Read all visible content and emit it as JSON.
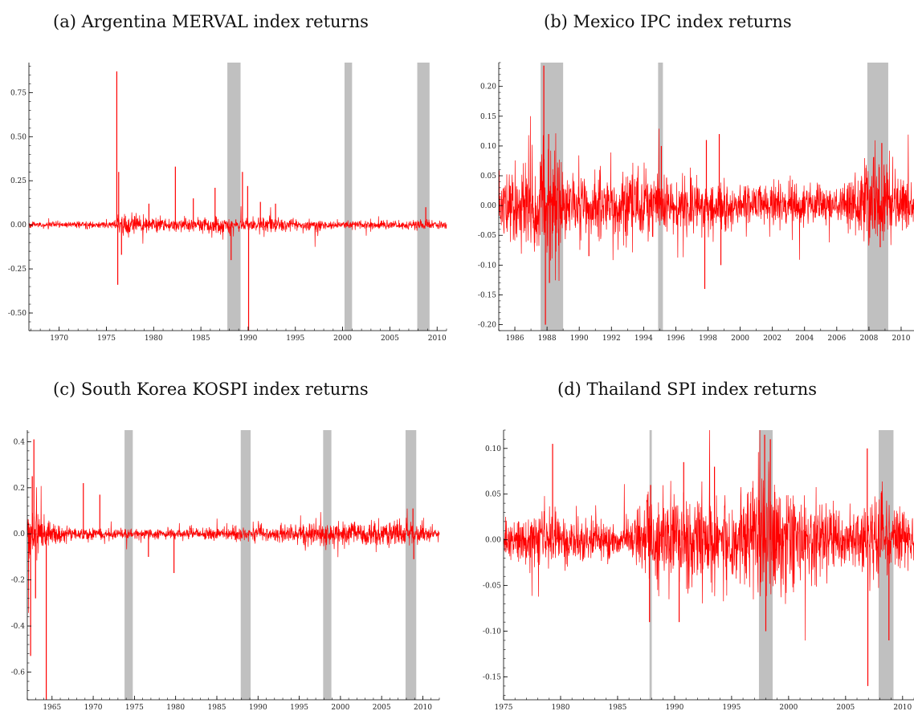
{
  "chart_data": [
    {
      "type": "line",
      "title": "(a) Argentina MERVAL index returns",
      "xlim": [
        1966.8,
        2011.0
      ],
      "ylim": [
        -0.6,
        0.92
      ],
      "xticks": [
        1970,
        1975,
        1980,
        1985,
        1990,
        1995,
        2000,
        2005,
        2010
      ],
      "yticks": [
        -0.5,
        -0.25,
        0.0,
        0.25,
        0.5,
        0.75
      ],
      "ytick_labels": [
        "-0.50",
        "-0.25",
        "0.00",
        "0.25",
        "0.50",
        "0.75"
      ],
      "zero_line": false,
      "shaded_periods": [
        [
          1987.8,
          1989.2
        ],
        [
          2000.2,
          2001.0
        ],
        [
          2007.9,
          2009.2
        ]
      ],
      "series": [
        {
          "values_note": "",
          "base_vol": [
            [
              1966.8,
              0.008
            ],
            [
              1975.5,
              0.01
            ],
            [
              1976.5,
              0.03
            ],
            [
              1980,
              0.018
            ],
            [
              1986,
              0.022
            ],
            [
              1992,
              0.022
            ],
            [
              1996,
              0.015
            ],
            [
              2000,
              0.012
            ],
            [
              2008,
              0.015
            ],
            [
              2011,
              0.012
            ]
          ],
          "spikes": [
            [
              1976.1,
              0.87
            ],
            [
              1976.2,
              -0.34
            ],
            [
              1976.3,
              0.3
            ],
            [
              1976.6,
              -0.17
            ],
            [
              1982.3,
              0.33
            ],
            [
              1989.4,
              0.3
            ],
            [
              1989.95,
              0.22
            ],
            [
              1990.05,
              -0.6
            ],
            [
              1979.5,
              0.12
            ],
            [
              1984.2,
              0.15
            ],
            [
              1986.5,
              0.21
            ],
            [
              1991.3,
              0.13
            ],
            [
              1992.9,
              0.12
            ],
            [
              2008.8,
              0.1
            ],
            [
              1988.2,
              -0.2
            ]
          ]
        }
      ]
    },
    {
      "type": "line",
      "title": "(b) Mexico IPC index returns",
      "xlim": [
        1985.0,
        2010.8
      ],
      "ylim": [
        -0.21,
        0.24
      ],
      "xticks": [
        1986,
        1988,
        1990,
        1992,
        1994,
        1996,
        1998,
        2000,
        2002,
        2004,
        2006,
        2008,
        2010
      ],
      "yticks": [
        -0.2,
        -0.15,
        -0.1,
        -0.05,
        0.0,
        0.05,
        0.1,
        0.15,
        0.2
      ],
      "ytick_labels": [
        "-0.20",
        "-0.15",
        "-0.10",
        "-0.05",
        "0.00",
        "0.05",
        "0.10",
        "0.15",
        "0.20"
      ],
      "zero_line": false,
      "shaded_periods": [
        [
          1987.6,
          1989.0
        ],
        [
          1994.9,
          1995.2
        ],
        [
          2007.9,
          2009.2
        ]
      ],
      "series": [
        {
          "values_note": "",
          "base_vol": [
            [
              1985,
              0.025
            ],
            [
              1987.5,
              0.04
            ],
            [
              1988.3,
              0.05
            ],
            [
              1989.5,
              0.025
            ],
            [
              1995,
              0.03
            ],
            [
              1996,
              0.02
            ],
            [
              2006,
              0.015
            ],
            [
              2008.8,
              0.04
            ],
            [
              2010.8,
              0.015
            ]
          ],
          "spikes": [
            [
              1987.8,
              0.235
            ],
            [
              1987.9,
              -0.2
            ],
            [
              1988.1,
              0.12
            ],
            [
              1988.15,
              -0.13
            ],
            [
              1995.1,
              0.1
            ],
            [
              1997.8,
              -0.14
            ],
            [
              1997.9,
              0.11
            ],
            [
              1998.7,
              0.12
            ],
            [
              1998.8,
              -0.1
            ],
            [
              2008.8,
              0.105
            ],
            [
              2008.7,
              -0.07
            ],
            [
              1990.6,
              -0.085
            ]
          ]
        }
      ]
    },
    {
      "type": "line",
      "title": "(c) South Korea KOSPI index returns",
      "xlim": [
        1962.0,
        2012.0
      ],
      "ylim": [
        -0.72,
        0.45
      ],
      "xticks": [
        1965,
        1970,
        1975,
        1980,
        1985,
        1990,
        1995,
        2000,
        2005,
        2010
      ],
      "yticks": [
        -0.6,
        -0.4,
        -0.2,
        0.0,
        0.2,
        0.4
      ],
      "ytick_labels": [
        "-0.6",
        "-0.4",
        "-0.2",
        "0.0",
        "0.2",
        "0.4"
      ],
      "zero_line": true,
      "shaded_periods": [
        [
          1973.8,
          1974.8
        ],
        [
          1987.9,
          1989.1
        ],
        [
          1997.9,
          1998.9
        ],
        [
          2007.9,
          2009.2
        ]
      ],
      "series": [
        {
          "values_note": "",
          "base_vol": [
            [
              1962.0,
              0.07
            ],
            [
              1964,
              0.03
            ],
            [
              1967,
              0.02
            ],
            [
              1972,
              0.012
            ],
            [
              1980,
              0.01
            ],
            [
              1986,
              0.015
            ],
            [
              1992,
              0.015
            ],
            [
              1997,
              0.03
            ],
            [
              2000,
              0.025
            ],
            [
              2008.8,
              0.03
            ],
            [
              2011,
              0.012
            ]
          ],
          "spikes": [
            [
              1962.8,
              0.41
            ],
            [
              1962.4,
              -0.53
            ],
            [
              1962.6,
              0.25
            ],
            [
              1963.0,
              -0.28
            ],
            [
              1964.3,
              -0.72
            ],
            [
              1968.8,
              0.22
            ],
            [
              1970.8,
              0.17
            ],
            [
              1979.8,
              -0.17
            ],
            [
              1976.7,
              -0.1
            ],
            [
              2008.8,
              0.11
            ],
            [
              2008.9,
              -0.11
            ]
          ]
        }
      ]
    },
    {
      "type": "line",
      "title": "(d) Thailand SPI index returns",
      "xlim": [
        1975.0,
        2011.0
      ],
      "ylim": [
        -0.175,
        0.12
      ],
      "xticks": [
        1975,
        1980,
        1985,
        1990,
        1995,
        2000,
        2005,
        2010
      ],
      "yticks": [
        -0.15,
        -0.1,
        -0.05,
        0.0,
        0.05,
        0.1
      ],
      "ytick_labels": [
        "-0.15",
        "-0.10",
        "-0.05",
        "0.00",
        "0.05",
        "0.10"
      ],
      "zero_line": false,
      "shaded_periods": [
        [
          1987.8,
          1988.0
        ],
        [
          1997.4,
          1998.6
        ],
        [
          2007.9,
          2009.2
        ]
      ],
      "series": [
        {
          "values_note": "",
          "base_vol": [
            [
              1975,
              0.01
            ],
            [
              1979,
              0.015
            ],
            [
              1986,
              0.012
            ],
            [
              1988,
              0.025
            ],
            [
              1990,
              0.028
            ],
            [
              1995,
              0.02
            ],
            [
              1997.5,
              0.035
            ],
            [
              1998.5,
              0.04
            ],
            [
              2000,
              0.025
            ],
            [
              2006,
              0.015
            ],
            [
              2008.8,
              0.025
            ],
            [
              2011,
              0.012
            ]
          ],
          "spikes": [
            [
              1979.3,
              0.105
            ],
            [
              1987.8,
              -0.09
            ],
            [
              1990.8,
              0.085
            ],
            [
              1990.4,
              -0.09
            ],
            [
              1997.9,
              0.115
            ],
            [
              1998.4,
              0.11
            ],
            [
              1998.0,
              -0.1
            ],
            [
              2006.9,
              0.1
            ],
            [
              2006.95,
              -0.16
            ],
            [
              2008.8,
              -0.11
            ],
            [
              1993.5,
              0.08
            ],
            [
              1987.9,
              0.06
            ]
          ]
        }
      ]
    }
  ]
}
